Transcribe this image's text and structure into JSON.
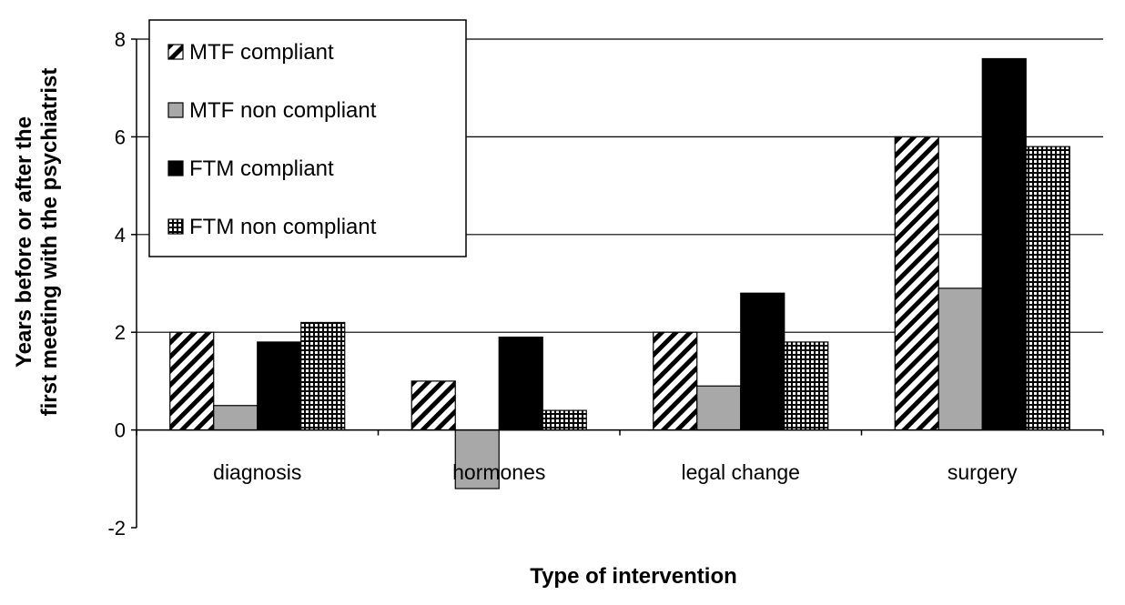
{
  "chart_data": {
    "type": "bar",
    "title": "",
    "xlabel": "Type of intervention",
    "ylabel": [
      "Years before or after the",
      "first meeting with the psychiatrist"
    ],
    "categories": [
      "diagnosis",
      "hormones",
      "legal change",
      "surgery"
    ],
    "series": [
      {
        "name": "MTF compliant",
        "values": [
          2.0,
          1.0,
          2.0,
          6.0
        ],
        "pattern": "diagonal-hatch"
      },
      {
        "name": "MTF non compliant",
        "values": [
          0.5,
          -1.2,
          0.9,
          2.9
        ],
        "pattern": "solid-gray"
      },
      {
        "name": "FTM compliant",
        "values": [
          1.8,
          1.9,
          2.8,
          7.6
        ],
        "pattern": "solid-black"
      },
      {
        "name": "FTM non compliant",
        "values": [
          2.2,
          0.4,
          1.8,
          5.8
        ],
        "pattern": "grid-check"
      }
    ],
    "ylim": [
      -2,
      8
    ],
    "yticks": [
      "-2",
      "0",
      "2",
      "4",
      "6",
      "8"
    ],
    "grid": true,
    "legend_position": "top-left",
    "colors": {
      "gray": "#a8a8a8",
      "black": "#000000",
      "grid": "#000000"
    }
  }
}
